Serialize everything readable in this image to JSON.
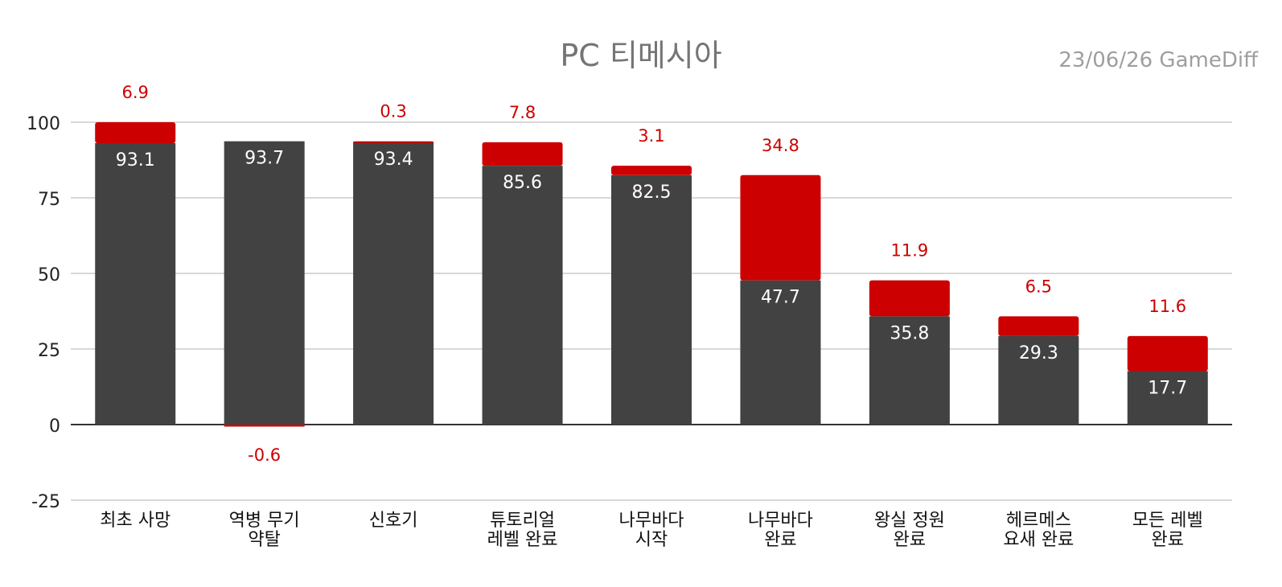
{
  "chart_data": {
    "type": "bar",
    "stacked": true,
    "title": "PC 티메시아",
    "note": "23/06/26  GameDiff",
    "categories": [
      [
        "최초 사망"
      ],
      [
        "역병 무기",
        "약탈"
      ],
      [
        "신호기"
      ],
      [
        "튜토리얼",
        "레벨 완료"
      ],
      [
        "나무바다",
        "시작"
      ],
      [
        "나무바다",
        "완료"
      ],
      [
        "왕실 정원",
        "완료"
      ],
      [
        "헤르메스",
        "요새 완료"
      ],
      [
        "모든 레벨",
        "완료"
      ]
    ],
    "series": [
      {
        "values": [
          93.1,
          93.7,
          93.4,
          85.6,
          82.5,
          47.7,
          35.8,
          29.3,
          17.7
        ],
        "color": "#424242"
      },
      {
        "values": [
          6.9,
          -0.6,
          0.3,
          7.8,
          3.1,
          34.8,
          11.9,
          6.5,
          11.6
        ],
        "color": "#cc0000"
      }
    ],
    "ylim": [
      -25,
      100
    ],
    "yticks": [
      100,
      75,
      50,
      25,
      0,
      -25
    ],
    "grid": true,
    "legend": "none"
  }
}
